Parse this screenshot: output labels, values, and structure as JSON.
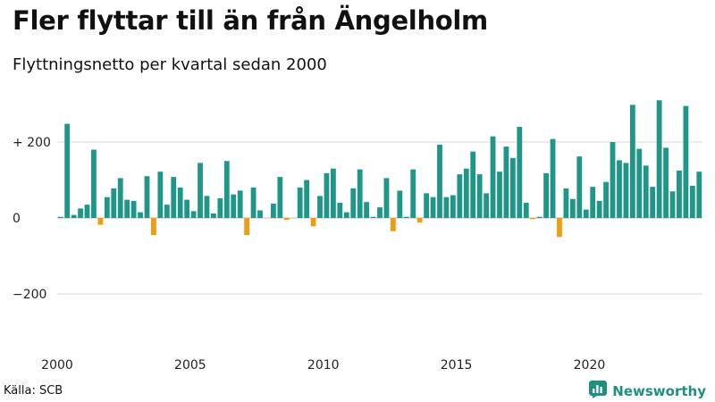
{
  "title": "Fler flyttar till än från Ängelholm",
  "subtitle": "Flyttningsnetto per kvartal sedan 2000",
  "source": "Källa: SCB",
  "brand": {
    "name": "Newsworthy",
    "icon": "newsworthy-logo-icon"
  },
  "colors": {
    "positive": "#1f9688",
    "negative": "#f39c12",
    "grid": "#d9d9d9",
    "brand": "#1f8f80"
  },
  "chart_data": {
    "type": "bar",
    "title": "Fler flyttar till än från Ängelholm",
    "subtitle": "Flyttningsnetto per kvartal sedan 2000",
    "xlabel": "",
    "ylabel": "",
    "ylim": [
      -330,
      330
    ],
    "yticks": [
      200,
      0,
      -200
    ],
    "ytick_labels": [
      "+ 200",
      "0",
      "−200"
    ],
    "xticks": [
      2000,
      2005,
      2010,
      2015,
      2020
    ],
    "xtick_labels": [
      "2000",
      "2005",
      "2010",
      "2015",
      "2020"
    ],
    "grid": true,
    "legend": "none",
    "x_start": 2000,
    "periods_per_year": 4,
    "values": [
      3,
      248,
      8,
      25,
      35,
      180,
      -18,
      55,
      78,
      105,
      48,
      45,
      15,
      110,
      -45,
      122,
      35,
      108,
      80,
      48,
      18,
      145,
      58,
      12,
      52,
      150,
      62,
      72,
      -45,
      80,
      20,
      0,
      38,
      108,
      -5,
      0,
      80,
      100,
      -22,
      58,
      118,
      130,
      40,
      15,
      78,
      128,
      42,
      3,
      28,
      105,
      -35,
      72,
      3,
      128,
      -12,
      65,
      55,
      193,
      55,
      60,
      115,
      130,
      175,
      115,
      65,
      215,
      122,
      188,
      158,
      240,
      40,
      -3,
      3,
      118,
      208,
      -50,
      78,
      50,
      162,
      22,
      82,
      45,
      95,
      200,
      152,
      145,
      298,
      182,
      138,
      82,
      310,
      185,
      70,
      125,
      295,
      85,
      122
    ]
  }
}
